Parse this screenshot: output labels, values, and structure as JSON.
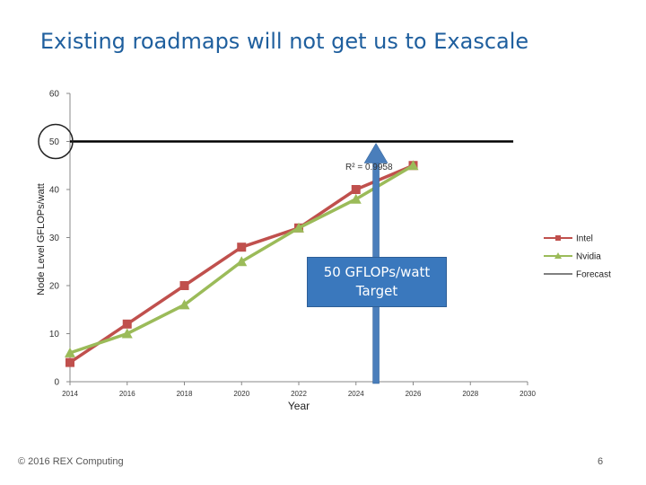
{
  "slide": {
    "title": "Existing roadmaps will not get us to Exascale",
    "copyright": "© 2016 REX Computing",
    "page_number": "6"
  },
  "callout": {
    "line1": "50 GFLOPs/watt",
    "line2": "Target"
  },
  "chart_data": {
    "type": "line",
    "xlabel": "Year",
    "ylabel": "Node Level GFLOPs/watt",
    "xlim": [
      2014,
      2030
    ],
    "ylim": [
      0,
      60
    ],
    "x_ticks": [
      "2014",
      "2016",
      "2018",
      "2020",
      "2022",
      "2024",
      "2026",
      "2028",
      "2030"
    ],
    "y_ticks": [
      "0",
      "10",
      "20",
      "30",
      "40",
      "50",
      "60"
    ],
    "grid": false,
    "legend_position": "right",
    "series": [
      {
        "name": "Intel",
        "color": "#c0504d",
        "marker": "square",
        "x": [
          2014,
          2016,
          2018,
          2020,
          2022,
          2024,
          2026
        ],
        "y": [
          4,
          12,
          20,
          28,
          32,
          40,
          45
        ]
      },
      {
        "name": "Nvidia",
        "color": "#9bbb59",
        "marker": "triangle",
        "x": [
          2014,
          2016,
          2018,
          2020,
          2022,
          2024,
          2026
        ],
        "y": [
          6,
          10,
          16,
          25,
          32,
          38,
          45
        ]
      },
      {
        "name": "Forecast",
        "color": "#000000",
        "marker": "none",
        "x": [
          2014,
          2029.5
        ],
        "y": [
          50,
          50
        ]
      }
    ],
    "annotations": {
      "r_squared": "R² = 0.9958",
      "target_year": 2024.7,
      "target_value": 50,
      "target_color": "#4a7ebb",
      "circle_at_value": 50
    }
  }
}
